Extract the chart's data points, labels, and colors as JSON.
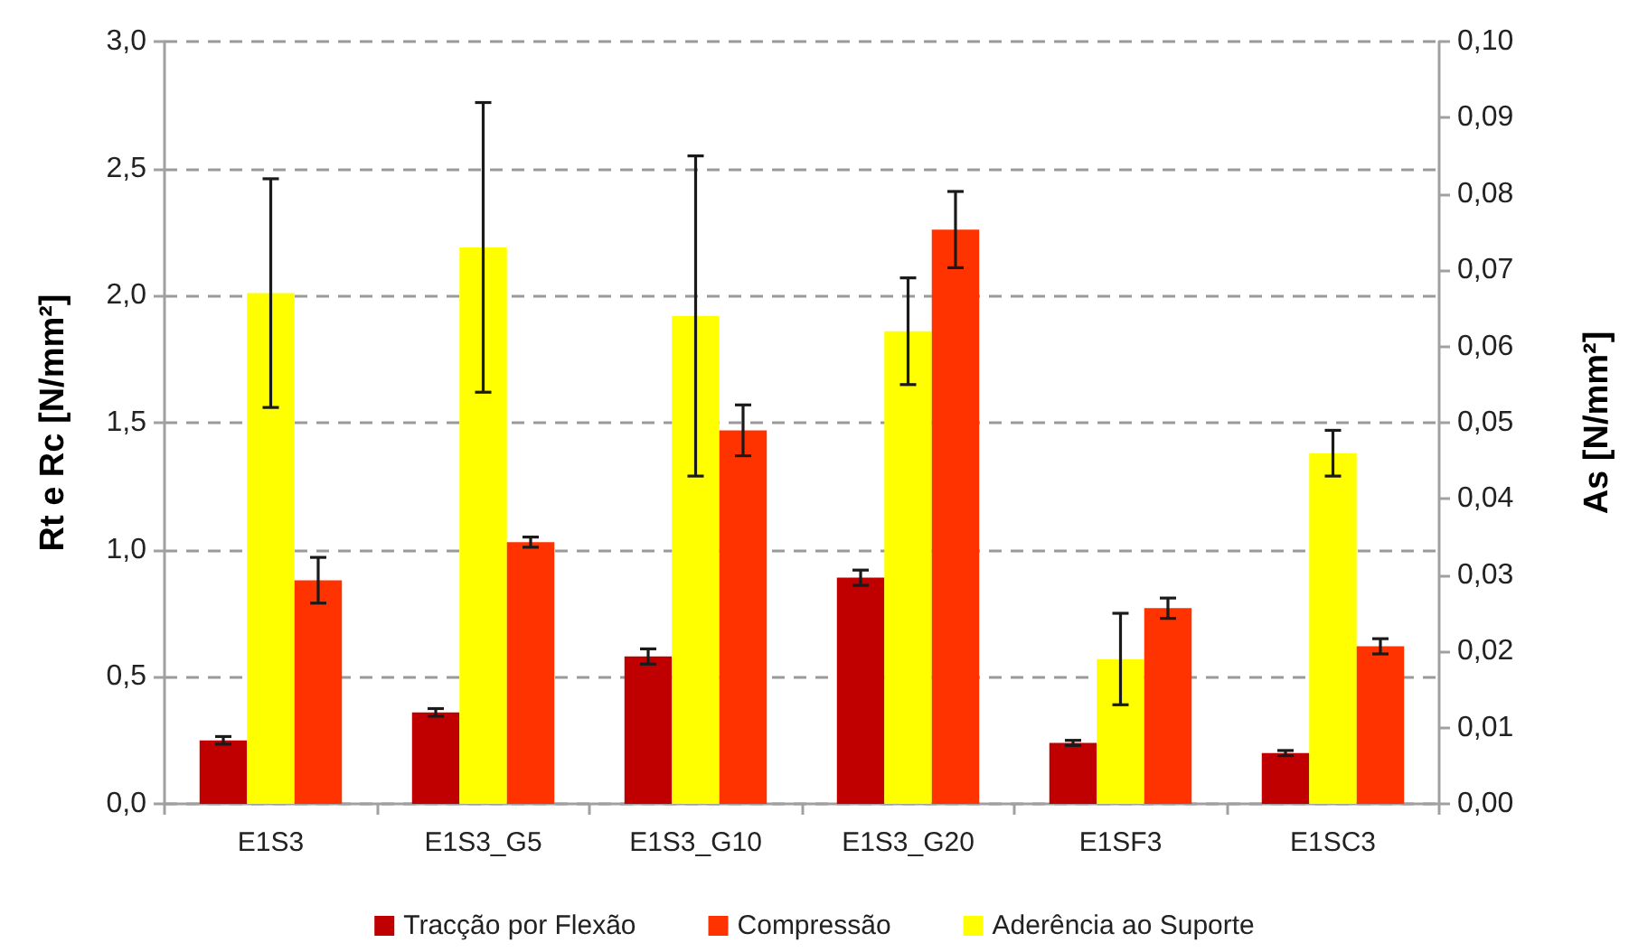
{
  "chart_data": {
    "type": "bar",
    "categories": [
      "E1S3",
      "E1S3_G5",
      "E1S3_G10",
      "E1S3_G20",
      "E1SF3",
      "E1SC3"
    ],
    "ylabel": "Rt e Rc [N/mm²]",
    "y2label": "As [N/mm²]",
    "series": [
      {
        "name": "Tracção por Flexão",
        "color": "#c00000",
        "values": [
          0.25,
          0.36,
          0.58,
          0.89,
          0.24,
          0.2
        ],
        "errors": [
          0.015,
          0.015,
          0.03,
          0.03,
          0.01,
          0.01
        ]
      },
      {
        "name": "Aderência ao Suporte",
        "color": "#ffff00",
        "axis": "y2",
        "values": [
          0.067,
          0.073,
          0.064,
          0.062,
          0.019,
          0.046
        ],
        "errors": [
          0.015,
          0.019,
          0.021,
          0.007,
          0.006,
          0.003
        ]
      },
      {
        "name": "Compressão",
        "color": "#ff3300",
        "values": [
          0.88,
          1.03,
          1.47,
          2.26,
          0.77,
          0.62
        ],
        "errors": [
          0.09,
          0.02,
          0.1,
          0.15,
          0.04,
          0.03
        ]
      }
    ],
    "ylim": [
      0,
      3
    ],
    "yticks": [
      {
        "value": 0,
        "label": "0,0"
      },
      {
        "value": 0.5,
        "label": "0,5"
      },
      {
        "value": 1,
        "label": "1,0"
      },
      {
        "value": 1.5,
        "label": "1,5"
      },
      {
        "value": 2,
        "label": "2,0"
      },
      {
        "value": 2.5,
        "label": "2,5"
      },
      {
        "value": 3,
        "label": "3,0"
      }
    ],
    "y2lim": [
      0,
      0.1
    ],
    "y2ticks": [
      {
        "value": 0,
        "label": "0,00"
      },
      {
        "value": 0.01,
        "label": "0,01"
      },
      {
        "value": 0.02,
        "label": "0,02"
      },
      {
        "value": 0.03,
        "label": "0,03"
      },
      {
        "value": 0.04,
        "label": "0,04"
      },
      {
        "value": 0.05,
        "label": "0,05"
      },
      {
        "value": 0.06,
        "label": "0,06"
      },
      {
        "value": 0.07,
        "label": "0,07"
      },
      {
        "value": 0.08,
        "label": "0,08"
      },
      {
        "value": 0.09,
        "label": "0,09"
      },
      {
        "value": 0.1,
        "label": "0,10"
      }
    ],
    "grid": "y",
    "legend": "bottom"
  }
}
